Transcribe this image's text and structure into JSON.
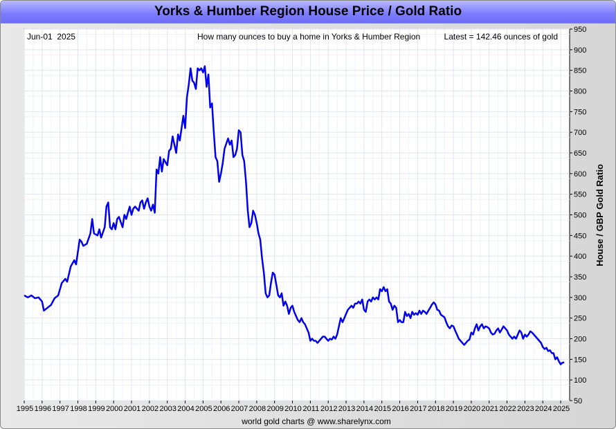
{
  "chart_data": {
    "type": "line",
    "title": "Yorks & Humber Region House Price / Gold Ratio",
    "date_label": "Jun-01  2025",
    "subtitle": "How many ounces to buy a home in Yorks & Humber Region",
    "latest_label": "Latest = 142.46 ounces of gold",
    "ylabel": "House / GBP Gold Ratio",
    "footer": "world gold charts @ www.sharelynx.com",
    "ylim": [
      50,
      950
    ],
    "y_ticks": [
      950,
      900,
      850,
      800,
      750,
      700,
      650,
      600,
      550,
      500,
      450,
      400,
      350,
      300,
      250,
      200,
      150,
      100,
      50
    ],
    "x_ticks": [
      "1995",
      "1996",
      "1997",
      "1998",
      "1999",
      "2000",
      "2001",
      "2002",
      "2003",
      "2004",
      "2005",
      "2006",
      "2007",
      "2008",
      "2009",
      "2010",
      "2011",
      "2012",
      "2013",
      "2014",
      "2015",
      "2016",
      "2017",
      "2018",
      "2019",
      "2020",
      "2021",
      "2022",
      "2023",
      "2024",
      "2025"
    ],
    "xlim": [
      1995.0,
      2025.5
    ],
    "grid": true,
    "series": [
      {
        "color": "#0000ee",
        "points": [
          [
            1995.0,
            305
          ],
          [
            1995.2,
            300
          ],
          [
            1995.4,
            305
          ],
          [
            1995.6,
            298
          ],
          [
            1995.8,
            300
          ],
          [
            1996.0,
            290
          ],
          [
            1996.1,
            268
          ],
          [
            1996.3,
            275
          ],
          [
            1996.5,
            282
          ],
          [
            1996.7,
            298
          ],
          [
            1996.9,
            305
          ],
          [
            1997.1,
            335
          ],
          [
            1997.3,
            345
          ],
          [
            1997.4,
            338
          ],
          [
            1997.6,
            375
          ],
          [
            1997.8,
            390
          ],
          [
            1997.9,
            380
          ],
          [
            1998.1,
            440
          ],
          [
            1998.2,
            435
          ],
          [
            1998.3,
            425
          ],
          [
            1998.5,
            430
          ],
          [
            1998.7,
            455
          ],
          [
            1998.8,
            490
          ],
          [
            1998.9,
            455
          ],
          [
            1999.1,
            450
          ],
          [
            1999.2,
            465
          ],
          [
            1999.3,
            445
          ],
          [
            1999.5,
            470
          ],
          [
            1999.6,
            520
          ],
          [
            1999.7,
            530
          ],
          [
            1999.8,
            470
          ],
          [
            1999.9,
            465
          ],
          [
            2000.0,
            480
          ],
          [
            2000.1,
            465
          ],
          [
            2000.2,
            490
          ],
          [
            2000.3,
            495
          ],
          [
            2000.5,
            470
          ],
          [
            2000.6,
            500
          ],
          [
            2000.7,
            490
          ],
          [
            2000.8,
            505
          ],
          [
            2000.9,
            520
          ],
          [
            2001.0,
            500
          ],
          [
            2001.1,
            515
          ],
          [
            2001.2,
            520
          ],
          [
            2001.4,
            510
          ],
          [
            2001.5,
            530
          ],
          [
            2001.6,
            535
          ],
          [
            2001.7,
            515
          ],
          [
            2001.8,
            530
          ],
          [
            2001.9,
            540
          ],
          [
            2002.0,
            520
          ],
          [
            2002.1,
            510
          ],
          [
            2002.2,
            525
          ],
          [
            2002.3,
            505
          ],
          [
            2002.4,
            610
          ],
          [
            2002.5,
            600
          ],
          [
            2002.6,
            640
          ],
          [
            2002.7,
            605
          ],
          [
            2002.8,
            635
          ],
          [
            2003.0,
            620
          ],
          [
            2003.1,
            655
          ],
          [
            2003.2,
            660
          ],
          [
            2003.3,
            690
          ],
          [
            2003.4,
            670
          ],
          [
            2003.5,
            650
          ],
          [
            2003.6,
            695
          ],
          [
            2003.7,
            680
          ],
          [
            2003.9,
            740
          ],
          [
            2004.0,
            710
          ],
          [
            2004.1,
            785
          ],
          [
            2004.2,
            815
          ],
          [
            2004.3,
            855
          ],
          [
            2004.4,
            825
          ],
          [
            2004.5,
            820
          ],
          [
            2004.6,
            805
          ],
          [
            2004.7,
            855
          ],
          [
            2004.8,
            850
          ],
          [
            2004.9,
            855
          ],
          [
            2005.0,
            845
          ],
          [
            2005.1,
            860
          ],
          [
            2005.2,
            810
          ],
          [
            2005.3,
            840
          ],
          [
            2005.4,
            760
          ],
          [
            2005.5,
            770
          ],
          [
            2005.6,
            700
          ],
          [
            2005.7,
            640
          ],
          [
            2005.8,
            630
          ],
          [
            2005.9,
            580
          ],
          [
            2006.0,
            600
          ],
          [
            2006.1,
            625
          ],
          [
            2006.2,
            660
          ],
          [
            2006.4,
            685
          ],
          [
            2006.5,
            670
          ],
          [
            2006.6,
            680
          ],
          [
            2006.7,
            640
          ],
          [
            2006.8,
            645
          ],
          [
            2006.9,
            660
          ],
          [
            2007.0,
            705
          ],
          [
            2007.1,
            700
          ],
          [
            2007.2,
            645
          ],
          [
            2007.3,
            630
          ],
          [
            2007.4,
            580
          ],
          [
            2007.5,
            510
          ],
          [
            2007.6,
            470
          ],
          [
            2007.7,
            480
          ],
          [
            2007.8,
            510
          ],
          [
            2007.9,
            500
          ],
          [
            2008.0,
            480
          ],
          [
            2008.1,
            455
          ],
          [
            2008.2,
            440
          ],
          [
            2008.3,
            395
          ],
          [
            2008.4,
            360
          ],
          [
            2008.5,
            310
          ],
          [
            2008.6,
            300
          ],
          [
            2008.7,
            305
          ],
          [
            2008.8,
            335
          ],
          [
            2008.9,
            360
          ],
          [
            2009.0,
            355
          ],
          [
            2009.1,
            330
          ],
          [
            2009.2,
            305
          ],
          [
            2009.3,
            300
          ],
          [
            2009.4,
            310
          ],
          [
            2009.5,
            280
          ],
          [
            2009.6,
            290
          ],
          [
            2009.7,
            280
          ],
          [
            2009.8,
            260
          ],
          [
            2009.9,
            275
          ],
          [
            2010.0,
            280
          ],
          [
            2010.1,
            265
          ],
          [
            2010.2,
            255
          ],
          [
            2010.3,
            245
          ],
          [
            2010.4,
            240
          ],
          [
            2010.5,
            250
          ],
          [
            2010.6,
            240
          ],
          [
            2010.7,
            235
          ],
          [
            2010.8,
            225
          ],
          [
            2010.9,
            215
          ],
          [
            2011.0,
            195
          ],
          [
            2011.1,
            200
          ],
          [
            2011.2,
            195
          ],
          [
            2011.3,
            195
          ],
          [
            2011.4,
            190
          ],
          [
            2011.5,
            195
          ],
          [
            2011.6,
            200
          ],
          [
            2011.7,
            205
          ],
          [
            2011.8,
            205
          ],
          [
            2011.9,
            200
          ],
          [
            2012.0,
            195
          ],
          [
            2012.1,
            200
          ],
          [
            2012.2,
            198
          ],
          [
            2012.3,
            205
          ],
          [
            2012.4,
            200
          ],
          [
            2012.5,
            210
          ],
          [
            2012.6,
            230
          ],
          [
            2012.7,
            250
          ],
          [
            2012.8,
            240
          ],
          [
            2012.9,
            250
          ],
          [
            2013.0,
            260
          ],
          [
            2013.1,
            270
          ],
          [
            2013.2,
            275
          ],
          [
            2013.3,
            280
          ],
          [
            2013.4,
            275
          ],
          [
            2013.5,
            285
          ],
          [
            2013.6,
            285
          ],
          [
            2013.7,
            290
          ],
          [
            2013.8,
            285
          ],
          [
            2013.9,
            295
          ],
          [
            2014.0,
            270
          ],
          [
            2014.1,
            265
          ],
          [
            2014.2,
            290
          ],
          [
            2014.3,
            295
          ],
          [
            2014.4,
            290
          ],
          [
            2014.5,
            300
          ],
          [
            2014.6,
            295
          ],
          [
            2014.7,
            300
          ],
          [
            2014.8,
            295
          ],
          [
            2014.9,
            320
          ],
          [
            2015.0,
            315
          ],
          [
            2015.1,
            325
          ],
          [
            2015.2,
            315
          ],
          [
            2015.3,
            320
          ],
          [
            2015.4,
            290
          ],
          [
            2015.5,
            285
          ],
          [
            2015.6,
            270
          ],
          [
            2015.7,
            280
          ],
          [
            2015.8,
            275
          ],
          [
            2015.9,
            240
          ],
          [
            2016.0,
            245
          ],
          [
            2016.1,
            240
          ],
          [
            2016.2,
            240
          ],
          [
            2016.3,
            265
          ],
          [
            2016.4,
            255
          ],
          [
            2016.5,
            260
          ],
          [
            2016.6,
            250
          ],
          [
            2016.7,
            265
          ],
          [
            2016.8,
            258
          ],
          [
            2016.9,
            262
          ],
          [
            2017.0,
            258
          ],
          [
            2017.1,
            268
          ],
          [
            2017.2,
            260
          ],
          [
            2017.3,
            268
          ],
          [
            2017.4,
            265
          ],
          [
            2017.5,
            260
          ],
          [
            2017.6,
            268
          ],
          [
            2017.7,
            275
          ],
          [
            2017.8,
            283
          ],
          [
            2017.9,
            288
          ],
          [
            2018.0,
            283
          ],
          [
            2018.1,
            270
          ],
          [
            2018.2,
            268
          ],
          [
            2018.3,
            258
          ],
          [
            2018.4,
            255
          ],
          [
            2018.5,
            252
          ],
          [
            2018.6,
            240
          ],
          [
            2018.7,
            230
          ],
          [
            2018.8,
            225
          ],
          [
            2018.9,
            232
          ],
          [
            2019.0,
            230
          ],
          [
            2019.1,
            220
          ],
          [
            2019.2,
            210
          ],
          [
            2019.3,
            200
          ],
          [
            2019.4,
            195
          ],
          [
            2019.5,
            190
          ],
          [
            2019.6,
            185
          ],
          [
            2019.7,
            190
          ],
          [
            2019.8,
            195
          ],
          [
            2019.9,
            198
          ],
          [
            2020.0,
            215
          ],
          [
            2020.1,
            210
          ],
          [
            2020.2,
            225
          ],
          [
            2020.3,
            235
          ],
          [
            2020.4,
            220
          ],
          [
            2020.5,
            230
          ],
          [
            2020.6,
            235
          ],
          [
            2020.7,
            225
          ],
          [
            2020.8,
            230
          ],
          [
            2020.9,
            228
          ],
          [
            2021.0,
            225
          ],
          [
            2021.1,
            215
          ],
          [
            2021.2,
            210
          ],
          [
            2021.3,
            212
          ],
          [
            2021.4,
            220
          ],
          [
            2021.5,
            225
          ],
          [
            2021.6,
            215
          ],
          [
            2021.7,
            222
          ],
          [
            2021.8,
            230
          ],
          [
            2021.9,
            225
          ],
          [
            2022.0,
            220
          ],
          [
            2022.1,
            210
          ],
          [
            2022.2,
            205
          ],
          [
            2022.3,
            200
          ],
          [
            2022.4,
            205
          ],
          [
            2022.5,
            200
          ],
          [
            2022.6,
            210
          ],
          [
            2022.7,
            220
          ],
          [
            2022.8,
            215
          ],
          [
            2022.9,
            200
          ],
          [
            2023.0,
            210
          ],
          [
            2023.1,
            205
          ],
          [
            2023.2,
            210
          ],
          [
            2023.3,
            218
          ],
          [
            2023.4,
            215
          ],
          [
            2023.5,
            210
          ],
          [
            2023.6,
            205
          ],
          [
            2023.7,
            200
          ],
          [
            2023.8,
            195
          ],
          [
            2023.9,
            190
          ],
          [
            2024.0,
            180
          ],
          [
            2024.1,
            175
          ],
          [
            2024.2,
            178
          ],
          [
            2024.3,
            170
          ],
          [
            2024.4,
            172
          ],
          [
            2024.5,
            165
          ],
          [
            2024.6,
            165
          ],
          [
            2024.7,
            150
          ],
          [
            2024.8,
            155
          ],
          [
            2024.9,
            145
          ],
          [
            2025.0,
            138
          ],
          [
            2025.1,
            142
          ],
          [
            2025.2,
            142.46
          ]
        ]
      }
    ]
  }
}
